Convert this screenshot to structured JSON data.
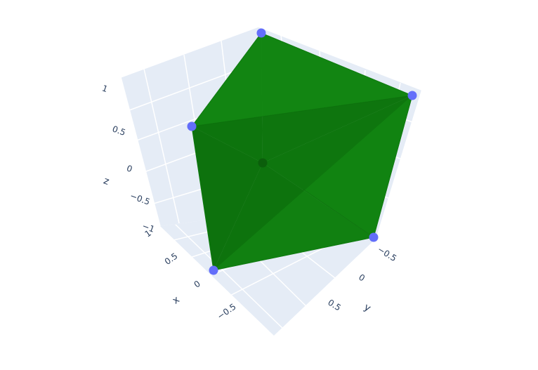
{
  "chart_data": {
    "type": "mesh3d",
    "x_axis": {
      "title": "x",
      "tick_labels": [
        "1",
        "0.5",
        "0",
        "−0.5"
      ]
    },
    "y_axis": {
      "title": "y",
      "tick_labels": [
        "−0.5",
        "0",
        "0.5"
      ]
    },
    "z_axis": {
      "title": "z",
      "tick_labels": [
        "1",
        "0.5",
        "0",
        "−0.5",
        "−1"
      ]
    },
    "grid": true,
    "mesh_color": "#128512",
    "marker_color": "#636efa",
    "scene_background": "#e5ecf6",
    "grid_color": "#ffffff"
  }
}
